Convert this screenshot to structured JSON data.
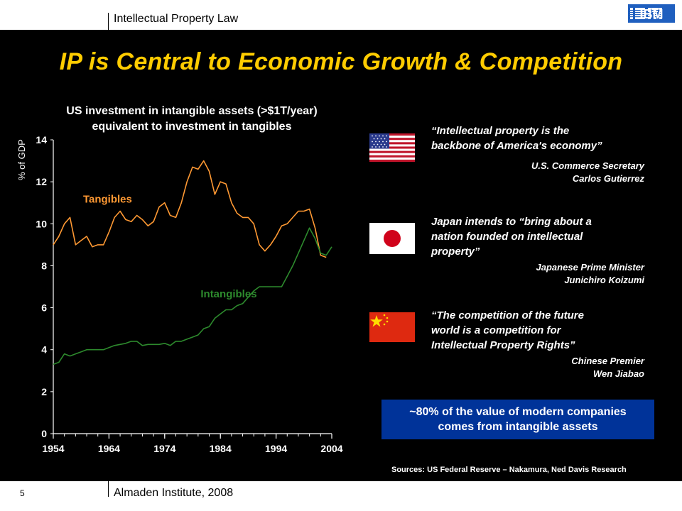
{
  "header": {
    "course": "Intellectual Property Law",
    "logo": "IBM"
  },
  "title": "IP is Central to Economic Growth & Competition",
  "chart_data": {
    "type": "line",
    "title_line1": "US investment in intangible assets (>$1T/year)",
    "title_line2": "equivalent to investment in tangibles",
    "ylabel": "% of GDP",
    "xlabel": "",
    "xlim": [
      1954,
      2004
    ],
    "ylim": [
      0,
      14
    ],
    "xticks": [
      1954,
      1964,
      1974,
      1984,
      1994,
      2004
    ],
    "yticks": [
      0,
      2,
      4,
      6,
      8,
      10,
      12,
      14
    ],
    "series": [
      {
        "name": "Tangibles",
        "color": "#ff9933",
        "x": [
          1954,
          1955,
          1956,
          1957,
          1958,
          1959,
          1960,
          1961,
          1962,
          1963,
          1964,
          1965,
          1966,
          1967,
          1968,
          1969,
          1970,
          1971,
          1972,
          1973,
          1974,
          1975,
          1976,
          1977,
          1978,
          1979,
          1980,
          1981,
          1982,
          1983,
          1984,
          1985,
          1986,
          1987,
          1988,
          1989,
          1990,
          1991,
          1992,
          1993,
          1994,
          1995,
          1996,
          1997,
          1998,
          1999,
          2000,
          2001,
          2002,
          2003
        ],
        "y": [
          9.0,
          9.4,
          10.0,
          10.3,
          9.0,
          9.2,
          9.4,
          8.9,
          9.0,
          9.0,
          9.6,
          10.3,
          10.6,
          10.2,
          10.1,
          10.4,
          10.2,
          9.9,
          10.1,
          10.8,
          11.0,
          10.4,
          10.3,
          11.0,
          12.0,
          12.7,
          12.6,
          13.0,
          12.5,
          11.4,
          12.0,
          11.9,
          11.0,
          10.5,
          10.3,
          10.3,
          10.0,
          9.0,
          8.7,
          9.0,
          9.4,
          9.9,
          10.0,
          10.3,
          10.6,
          10.6,
          10.7,
          9.8,
          8.5,
          8.4
        ]
      },
      {
        "name": "Intangibles",
        "color": "#2d8a2d",
        "x": [
          1954,
          1955,
          1956,
          1957,
          1958,
          1959,
          1960,
          1961,
          1962,
          1963,
          1964,
          1965,
          1966,
          1967,
          1968,
          1969,
          1970,
          1971,
          1972,
          1973,
          1974,
          1975,
          1976,
          1977,
          1978,
          1979,
          1980,
          1981,
          1982,
          1983,
          1984,
          1985,
          1986,
          1987,
          1988,
          1989,
          1990,
          1991,
          1992,
          1993,
          1994,
          1995,
          1996,
          1997,
          1998,
          1999,
          2000,
          2001,
          2002,
          2003,
          2004
        ],
        "y": [
          3.3,
          3.4,
          3.8,
          3.7,
          3.8,
          3.9,
          4.0,
          4.0,
          4.0,
          4.0,
          4.1,
          4.2,
          4.25,
          4.3,
          4.4,
          4.4,
          4.2,
          4.25,
          4.25,
          4.25,
          4.3,
          4.2,
          4.4,
          4.4,
          4.5,
          4.6,
          4.7,
          5.0,
          5.1,
          5.5,
          5.7,
          5.9,
          5.9,
          6.1,
          6.2,
          6.5,
          6.8,
          7.0,
          7.0,
          7.0,
          7.0,
          7.0,
          7.5,
          8.0,
          8.6,
          9.2,
          9.8,
          9.3,
          8.6,
          8.5,
          8.9
        ]
      }
    ]
  },
  "quotes": [
    {
      "text_line1": "“Intellectual property is the",
      "text_line2": "backbone of America's economy”",
      "text_line3": "",
      "attr_line1": "U.S. Commerce Secretary",
      "attr_line2": "Carlos Gutierrez"
    },
    {
      "text_line1": "Japan intends to “bring about a",
      "text_line2": "nation founded on intellectual",
      "text_line3": "property”",
      "attr_line1": "Japanese Prime Minister",
      "attr_line2": "Junichiro Koizumi"
    },
    {
      "text_line1": "“The competition of the future",
      "text_line2": "world is a competition for",
      "text_line3": "Intellectual Property Rights”",
      "attr_line1": "Chinese Premier",
      "attr_line2": "Wen Jiabao"
    }
  ],
  "flags": {
    "us": "us-flag-icon",
    "japan": "japan-flag-icon",
    "china": "china-flag-icon"
  },
  "callout": {
    "line1": "~80% of the value of modern companies",
    "line2": "comes from intangible assets"
  },
  "sources": "Sources:  US Federal Reserve – Nakamura, Ned Davis Research",
  "footer": {
    "page": "5",
    "institute": "Almaden Institute, 2008"
  },
  "colors": {
    "title": "#ffcc00",
    "tangibles": "#ff9933",
    "intangibles": "#2d8a2d",
    "callout": "#003399"
  }
}
